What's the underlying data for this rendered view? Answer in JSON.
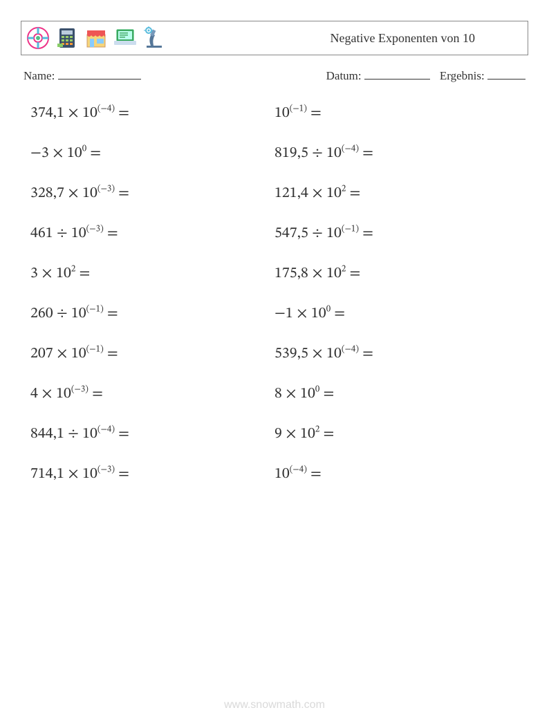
{
  "header": {
    "title": "Negative Exponenten von 10",
    "title_fontsize": 18,
    "border_color": "#888888",
    "icons": [
      "lifebuoy-icon",
      "calculator-icon",
      "shop-icon",
      "laptop-icon",
      "microscope-icon"
    ]
  },
  "meta": {
    "name_label": "Name:",
    "date_label": "Datum:",
    "result_label": "Ergebnis:",
    "text_color": "#333333",
    "fontsize": 17
  },
  "problems": {
    "fontsize": 22,
    "sup_fontsize": 13,
    "text_color": "#333333",
    "columns": 2,
    "row_gap": 30,
    "left": [
      {
        "coef": "374,1",
        "op": "×",
        "base": "10",
        "exp": "(−4)",
        "eq": "="
      },
      {
        "coef": "−3",
        "op": "×",
        "base": "10",
        "exp": "0",
        "eq": "="
      },
      {
        "coef": "328,7",
        "op": "×",
        "base": "10",
        "exp": "(−3)",
        "eq": "="
      },
      {
        "coef": "461",
        "op": "÷",
        "base": "10",
        "exp": "(−3)",
        "eq": "="
      },
      {
        "coef": "3",
        "op": "×",
        "base": "10",
        "exp": "2",
        "eq": "="
      },
      {
        "coef": "260",
        "op": "÷",
        "base": "10",
        "exp": "(−1)",
        "eq": "="
      },
      {
        "coef": "207",
        "op": "×",
        "base": "10",
        "exp": "(−1)",
        "eq": "="
      },
      {
        "coef": "4",
        "op": "×",
        "base": "10",
        "exp": "(−3)",
        "eq": "="
      },
      {
        "coef": "844,1",
        "op": "÷",
        "base": "10",
        "exp": "(−4)",
        "eq": "="
      },
      {
        "coef": "714,1",
        "op": "×",
        "base": "10",
        "exp": "(−3)",
        "eq": "="
      }
    ],
    "right": [
      {
        "coef": "",
        "op": "",
        "base": "10",
        "exp": "(−1)",
        "eq": "="
      },
      {
        "coef": "819,5",
        "op": "÷",
        "base": "10",
        "exp": "(−4)",
        "eq": "="
      },
      {
        "coef": "121,4",
        "op": "×",
        "base": "10",
        "exp": "2",
        "eq": "="
      },
      {
        "coef": "547,5",
        "op": "÷",
        "base": "10",
        "exp": "(−1)",
        "eq": "="
      },
      {
        "coef": "175,8",
        "op": "×",
        "base": "10",
        "exp": "2",
        "eq": "="
      },
      {
        "coef": "−1",
        "op": "×",
        "base": "10",
        "exp": "0",
        "eq": "="
      },
      {
        "coef": "539,5",
        "op": "×",
        "base": "10",
        "exp": "(−4)",
        "eq": "="
      },
      {
        "coef": "8",
        "op": "×",
        "base": "10",
        "exp": "0",
        "eq": "="
      },
      {
        "coef": "9",
        "op": "×",
        "base": "10",
        "exp": "2",
        "eq": "="
      },
      {
        "coef": "",
        "op": "",
        "base": "10",
        "exp": "(−4)",
        "eq": "="
      }
    ]
  },
  "footer": {
    "text": "www.snowmath.com",
    "color": "#d9d9d9",
    "fontsize": 16
  },
  "colors": {
    "background": "#ffffff",
    "text": "#333333"
  }
}
